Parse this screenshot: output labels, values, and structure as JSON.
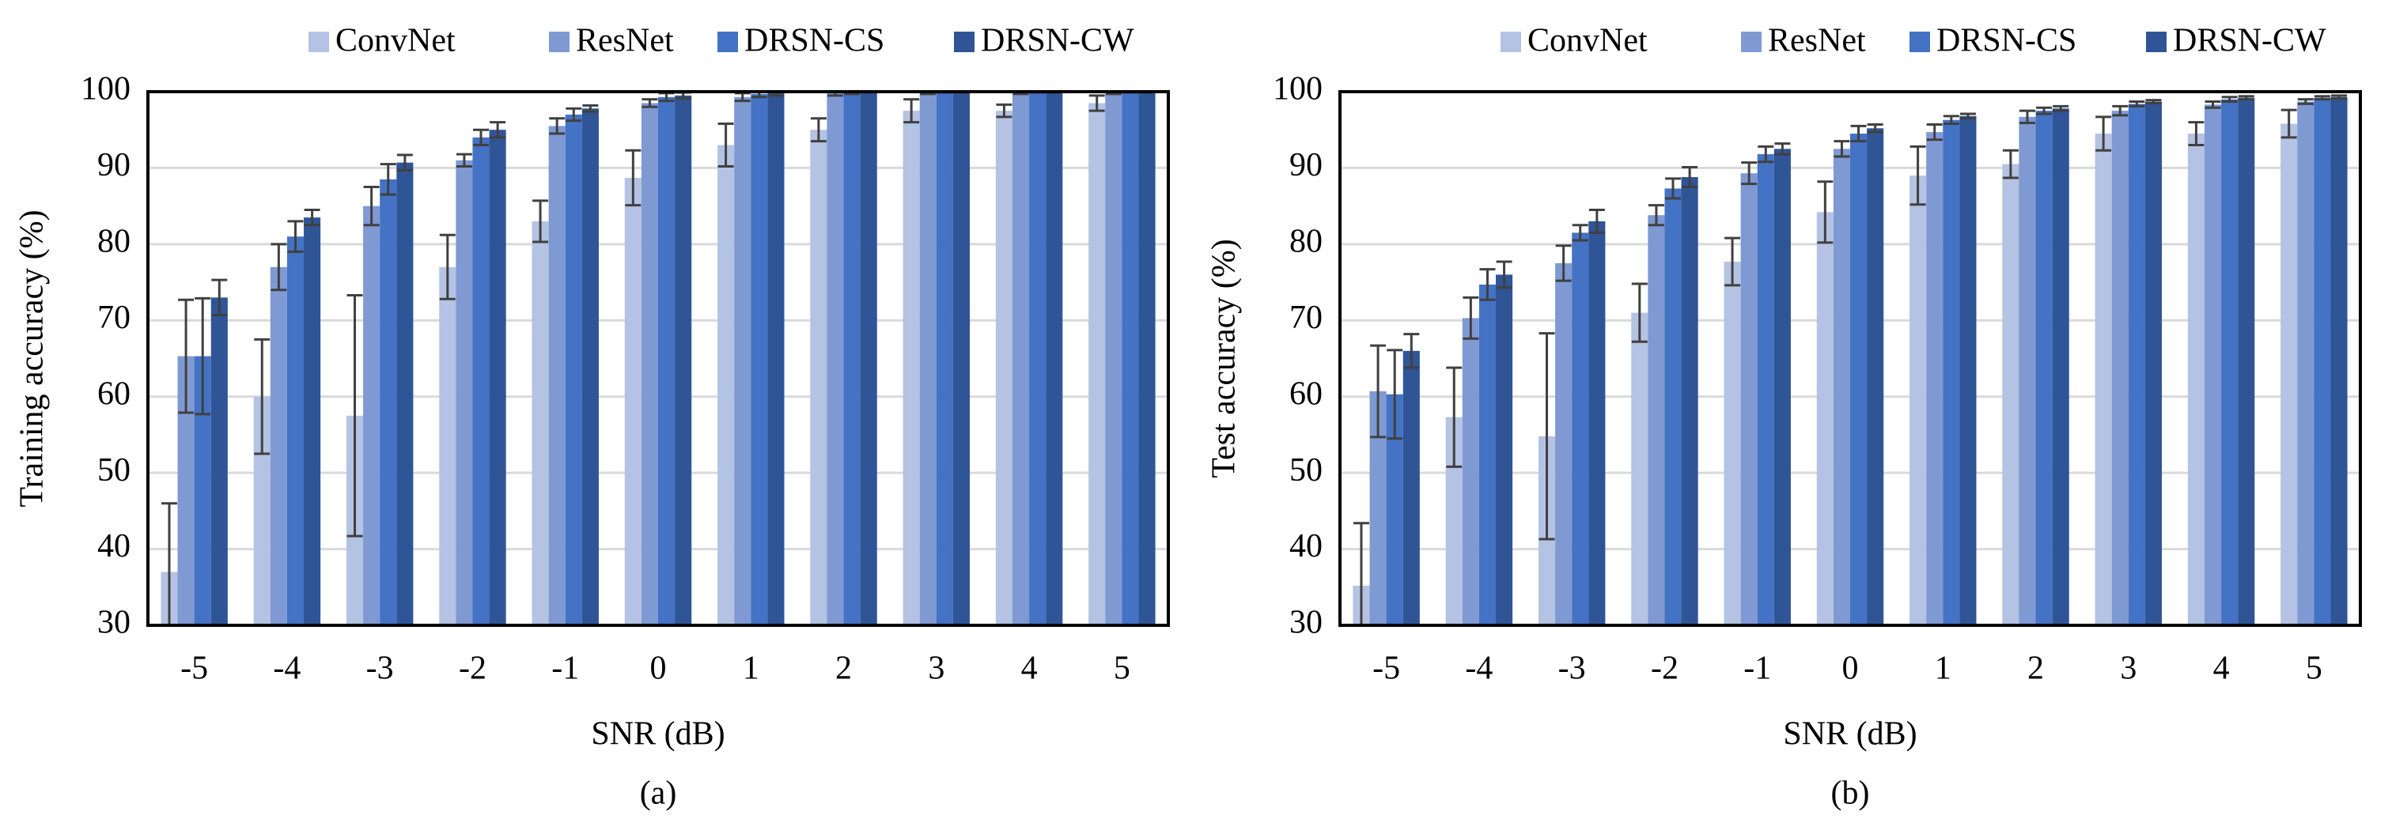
{
  "chart_data": [
    {
      "type": "bar",
      "caption": "(a)",
      "x_label": "SNR (dB)",
      "y_label": "Training accuracy (%)",
      "categories": [
        "-5",
        "-4",
        "-3",
        "-2",
        "-1",
        "0",
        "1",
        "2",
        "3",
        "4",
        "5"
      ],
      "ylim": [
        30,
        100
      ],
      "yticks": [
        30,
        40,
        50,
        60,
        70,
        80,
        90,
        100
      ],
      "grid": true,
      "series": [
        {
          "name": "ConvNet",
          "color": "#b4c3e3",
          "values": [
            37,
            60,
            57.5,
            77,
            83,
            88.7,
            93,
            95,
            97.5,
            97.5,
            98.5
          ],
          "errors": [
            9,
            7.5,
            15.8,
            4.2,
            2.7,
            3.6,
            2.8,
            1.5,
            1.5,
            0.8,
            1
          ]
        },
        {
          "name": "ResNet",
          "color": "#7f99d3",
          "values": [
            65.3,
            77,
            85,
            91,
            95.5,
            98.5,
            99.3,
            99.8,
            99.9,
            99.9,
            99.9
          ],
          "errors": [
            7.4,
            3,
            2.5,
            0.8,
            1,
            0.5,
            0.5,
            0.3,
            0.2,
            0.2,
            0.2
          ]
        },
        {
          "name": "DRSN-CS",
          "color": "#4472c4",
          "values": [
            65.3,
            81,
            88.5,
            94,
            97,
            99.3,
            99.7,
            99.9,
            100,
            100,
            100
          ],
          "errors": [
            7.6,
            2,
            2,
            1,
            0.8,
            0.5,
            0.4,
            0.2,
            0.1,
            0.1,
            0.1
          ]
        },
        {
          "name": "DRSN-CW",
          "color": "#2f5597",
          "values": [
            73,
            83.5,
            90.7,
            95,
            97.8,
            99.5,
            99.8,
            100,
            100,
            100,
            100
          ],
          "errors": [
            2.3,
            1,
            1,
            1,
            0.4,
            0.4,
            0.3,
            0.1,
            0.1,
            0.1,
            0.1
          ]
        }
      ]
    },
    {
      "type": "bar",
      "caption": "(b)",
      "x_label": "SNR (dB)",
      "y_label": "Test accuracy (%)",
      "categories": [
        "-5",
        "-4",
        "-3",
        "-2",
        "-1",
        "0",
        "1",
        "2",
        "3",
        "4",
        "5"
      ],
      "ylim": [
        30,
        100
      ],
      "yticks": [
        30,
        40,
        50,
        60,
        70,
        80,
        90,
        100
      ],
      "grid": true,
      "series": [
        {
          "name": "ConvNet",
          "color": "#b4c3e3",
          "values": [
            35.2,
            57.3,
            54.8,
            71,
            77.7,
            84.2,
            89,
            90.5,
            94.5,
            94.5,
            95.8
          ],
          "errors": [
            8.2,
            6.5,
            13.5,
            3.8,
            3.1,
            4,
            3.8,
            1.8,
            2.2,
            1.5,
            1.8
          ]
        },
        {
          "name": "ResNet",
          "color": "#7f99d3",
          "values": [
            60.7,
            70.3,
            77.5,
            83.8,
            89.3,
            92.5,
            94.7,
            96.7,
            97.5,
            98.3,
            98.7
          ],
          "errors": [
            6,
            2.7,
            2.3,
            1.3,
            1.4,
            1,
            1,
            0.8,
            0.6,
            0.4,
            0.3
          ]
        },
        {
          "name": "DRSN-CS",
          "color": "#4472c4",
          "values": [
            60.3,
            74.7,
            81.5,
            87.3,
            91.8,
            94.5,
            96.3,
            97.5,
            98.4,
            99,
            99.2
          ],
          "errors": [
            5.8,
            2,
            1,
            1.3,
            1,
            1,
            0.5,
            0.4,
            0.3,
            0.3,
            0.2
          ]
        },
        {
          "name": "DRSN-CW",
          "color": "#2f5597",
          "values": [
            66,
            76,
            83,
            88.8,
            92.5,
            95.2,
            96.8,
            97.8,
            98.7,
            99.2,
            99.3
          ],
          "errors": [
            2.2,
            1.7,
            1.5,
            1.3,
            0.7,
            0.5,
            0.3,
            0.3,
            0.2,
            0.2,
            0.2
          ]
        }
      ]
    }
  ]
}
